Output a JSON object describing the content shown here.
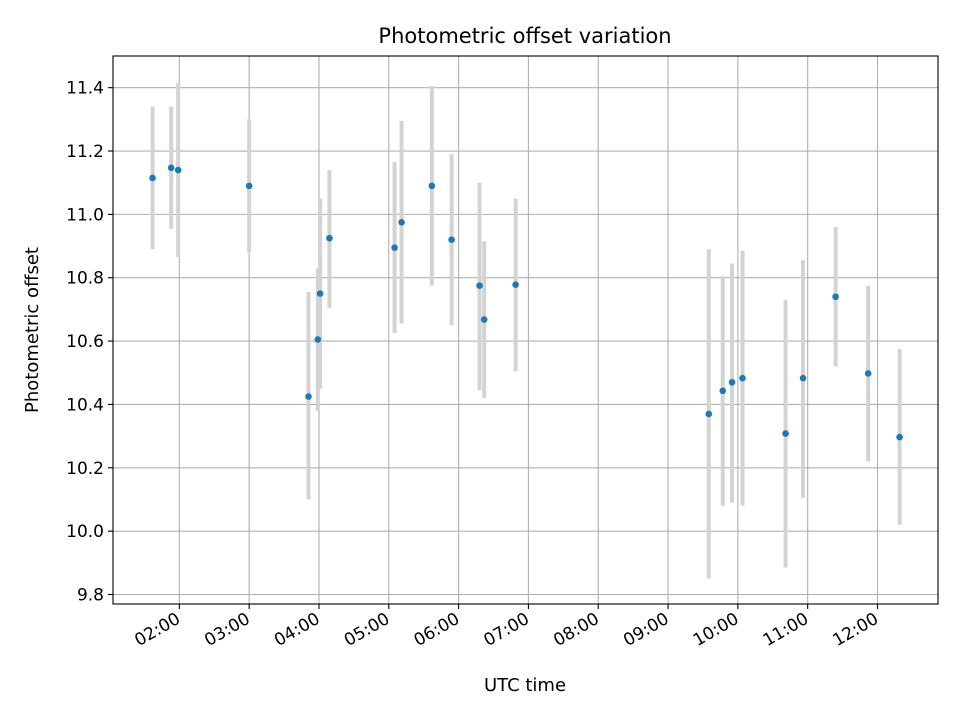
{
  "chart_data": {
    "type": "scatter",
    "title": "Photometric offset variation",
    "xlabel": "UTC time",
    "ylabel": "Photometric offset",
    "x_ticks": [
      "02:00",
      "03:00",
      "04:00",
      "05:00",
      "06:00",
      "07:00",
      "08:00",
      "09:00",
      "10:00",
      "11:00",
      "12:00"
    ],
    "y_ticks": [
      "9.8",
      "10.0",
      "10.2",
      "10.4",
      "10.6",
      "10.8",
      "11.0",
      "11.2",
      "11.4"
    ],
    "xlim": [
      "01:03",
      "12:52"
    ],
    "ylim": [
      9.77,
      11.5
    ],
    "grid": true,
    "colors": {
      "point": "#1f77b4",
      "errorbar": "#d3d3d3",
      "grid": "#b0b0b0"
    },
    "points": [
      {
        "x": "01:37",
        "y": 11.115,
        "lo": 10.89,
        "hi": 11.34
      },
      {
        "x": "01:53",
        "y": 11.147,
        "lo": 10.955,
        "hi": 11.34
      },
      {
        "x": "01:59",
        "y": 11.14,
        "lo": 10.865,
        "hi": 11.415
      },
      {
        "x": "03:00",
        "y": 11.09,
        "lo": 10.88,
        "hi": 11.3
      },
      {
        "x": "03:51",
        "y": 10.425,
        "lo": 10.1,
        "hi": 10.755
      },
      {
        "x": "03:59",
        "y": 10.605,
        "lo": 10.38,
        "hi": 10.83
      },
      {
        "x": "04:01",
        "y": 10.75,
        "lo": 10.45,
        "hi": 11.05
      },
      {
        "x": "04:09",
        "y": 10.925,
        "lo": 10.705,
        "hi": 11.14
      },
      {
        "x": "05:05",
        "y": 10.895,
        "lo": 10.625,
        "hi": 11.165
      },
      {
        "x": "05:11",
        "y": 10.975,
        "lo": 10.655,
        "hi": 11.295
      },
      {
        "x": "05:37",
        "y": 11.09,
        "lo": 10.775,
        "hi": 11.405
      },
      {
        "x": "05:54",
        "y": 10.92,
        "lo": 10.65,
        "hi": 11.19
      },
      {
        "x": "06:18",
        "y": 10.775,
        "lo": 10.445,
        "hi": 11.1
      },
      {
        "x": "06:22",
        "y": 10.668,
        "lo": 10.42,
        "hi": 10.915
      },
      {
        "x": "06:49",
        "y": 10.778,
        "lo": 10.505,
        "hi": 11.05
      },
      {
        "x": "09:35",
        "y": 10.37,
        "lo": 9.85,
        "hi": 10.89
      },
      {
        "x": "09:47",
        "y": 10.443,
        "lo": 10.08,
        "hi": 10.805
      },
      {
        "x": "09:55",
        "y": 10.47,
        "lo": 10.09,
        "hi": 10.845
      },
      {
        "x": "10:04",
        "y": 10.483,
        "lo": 10.08,
        "hi": 10.885
      },
      {
        "x": "10:41",
        "y": 10.308,
        "lo": 9.885,
        "hi": 10.73
      },
      {
        "x": "10:56",
        "y": 10.483,
        "lo": 10.105,
        "hi": 10.855
      },
      {
        "x": "11:24",
        "y": 10.74,
        "lo": 10.52,
        "hi": 10.96
      },
      {
        "x": "11:52",
        "y": 10.498,
        "lo": 10.22,
        "hi": 10.775
      },
      {
        "x": "12:19",
        "y": 10.297,
        "lo": 10.02,
        "hi": 10.575
      }
    ]
  }
}
